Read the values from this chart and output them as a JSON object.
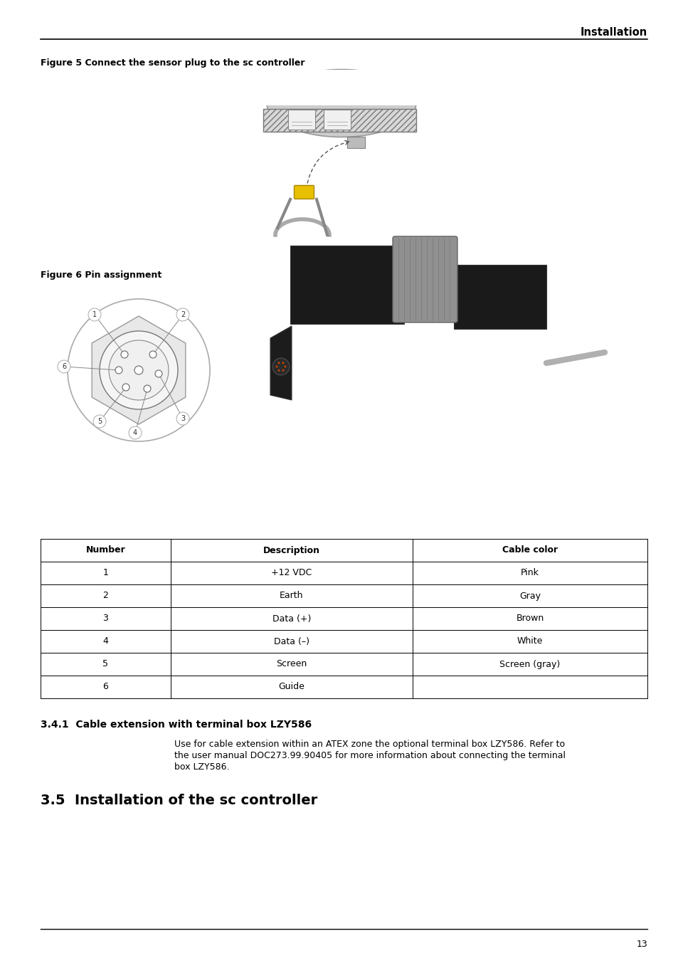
{
  "header_text": "Installation",
  "fig5_caption": "Figure 5 Connect the sensor plug to the sc controller",
  "fig6_caption": "Figure 6 Pin assignment",
  "section_341_title": "3.4.1  Cable extension with terminal box LZY586",
  "section_341_body_line1": "Use for cable extension within an ATEX zone the optional terminal box LZY586. Refer to",
  "section_341_body_line2": "the user manual DOC273.99.90405 for more information about connecting the terminal",
  "section_341_body_line3": "box LZY586.",
  "section_35_title": "3.5  Installation of the sc controller",
  "table_headers": [
    "Number",
    "Description",
    "Cable color"
  ],
  "table_rows": [
    [
      "1",
      "+12 VDC",
      "Pink"
    ],
    [
      "2",
      "Earth",
      "Gray"
    ],
    [
      "3",
      "Data (+)",
      "Brown"
    ],
    [
      "4",
      "Data (–)",
      "White"
    ],
    [
      "5",
      "Screen",
      "Screen (gray)"
    ],
    [
      "6",
      "Guide",
      ""
    ]
  ],
  "page_number": "13",
  "bg_color": "#ffffff",
  "text_color": "#000000"
}
